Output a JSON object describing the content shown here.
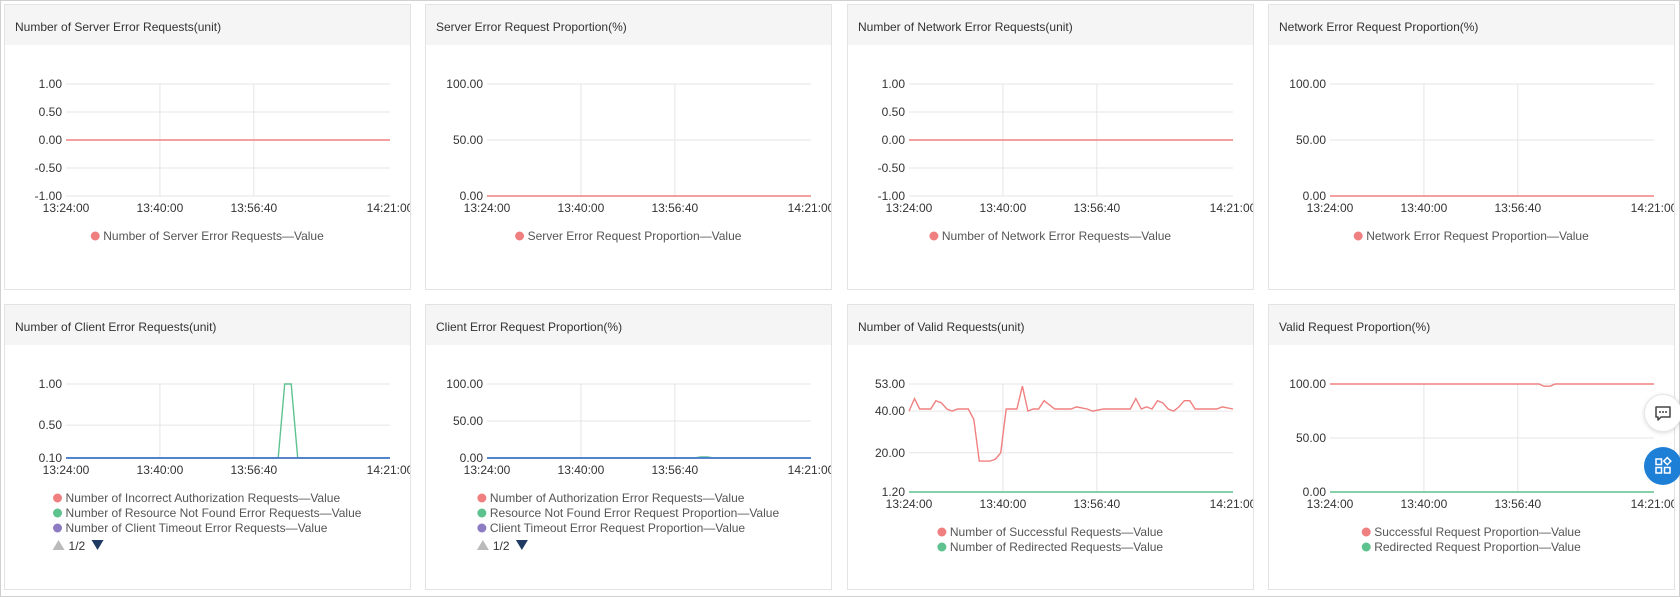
{
  "colors": {
    "red": "#f08080",
    "green": "#5ec28e",
    "purple": "#8e7cc3",
    "blue": "#3a7bd5",
    "grid": "#e6e6e6"
  },
  "x_ticks": [
    "13:24:00",
    "13:40:00",
    "13:56:40",
    "14:21:00"
  ],
  "pager": {
    "text": "1/2"
  },
  "floating": {
    "chat_icon": "chat-icon",
    "apps_icon": "apps-icon"
  },
  "chart_data": [
    {
      "id": "server-error-count",
      "type": "line",
      "title": "Number of Server Error Requests(unit)",
      "yticks": [
        "1.00",
        "0.50",
        "0.00",
        "-0.50",
        "-1.00"
      ],
      "ylim": [
        -1,
        1
      ],
      "x_range": [
        "13:24:00",
        "14:21:00"
      ],
      "series": [
        {
          "name": "Number of Server Error Requests—Value",
          "color": "#f08080",
          "points": [
            [
              0,
              0
            ],
            [
              1,
              0
            ]
          ]
        }
      ]
    },
    {
      "id": "server-error-proportion",
      "type": "line",
      "title": "Server Error Request Proportion(%)",
      "yticks": [
        "100.00",
        "50.00",
        "0.00"
      ],
      "ylim": [
        0,
        100
      ],
      "x_range": [
        "13:24:00",
        "14:21:00"
      ],
      "series": [
        {
          "name": "Server Error Request Proportion—Value",
          "color": "#f08080",
          "points": [
            [
              0,
              0
            ],
            [
              1,
              0
            ]
          ]
        }
      ]
    },
    {
      "id": "network-error-count",
      "type": "line",
      "title": "Number of Network Error Requests(unit)",
      "yticks": [
        "1.00",
        "0.50",
        "0.00",
        "-0.50",
        "-1.00"
      ],
      "ylim": [
        -1,
        1
      ],
      "x_range": [
        "13:24:00",
        "14:21:00"
      ],
      "series": [
        {
          "name": "Number of Network Error Requests—Value",
          "color": "#f08080",
          "points": [
            [
              0,
              0
            ],
            [
              1,
              0
            ]
          ]
        }
      ]
    },
    {
      "id": "network-error-proportion",
      "type": "line",
      "title": "Network Error Request Proportion(%)",
      "yticks": [
        "100.00",
        "50.00",
        "0.00"
      ],
      "ylim": [
        0,
        100
      ],
      "x_range": [
        "13:24:00",
        "14:21:00"
      ],
      "series": [
        {
          "name": "Network Error Request Proportion—Value",
          "color": "#f08080",
          "points": [
            [
              0,
              0
            ],
            [
              1,
              0
            ]
          ]
        }
      ]
    },
    {
      "id": "client-error-count",
      "type": "line",
      "title": "Number of Client Error Requests(unit)",
      "yticks": [
        "1.00",
        "0.50",
        "0.10"
      ],
      "ylim": [
        0.1,
        1
      ],
      "x_range": [
        "13:24:00",
        "14:21:00"
      ],
      "pager": true,
      "series": [
        {
          "name": "Number of Incorrect Authorization Requests—Value",
          "color": "#f08080",
          "points": [
            [
              0,
              0.1
            ],
            [
              1,
              0.1
            ]
          ]
        },
        {
          "name": "Number of Resource Not Found Error Requests—Value",
          "color": "#5ec28e",
          "points": [
            [
              0,
              0.1
            ],
            [
              0.655,
              0.1
            ],
            [
              0.675,
              1
            ],
            [
              0.695,
              1
            ],
            [
              0.715,
              0.1
            ],
            [
              1,
              0.1
            ]
          ]
        },
        {
          "name": "Number of Client Timeout Error Requests—Value",
          "color": "#8e7cc3",
          "points": [
            [
              0,
              0.1
            ],
            [
              1,
              0.1
            ]
          ]
        },
        {
          "name": "",
          "color": "#3a7bd5",
          "points": [
            [
              0,
              0.1
            ],
            [
              1,
              0.1
            ]
          ]
        }
      ]
    },
    {
      "id": "client-error-proportion",
      "type": "line",
      "title": "Client Error Request Proportion(%)",
      "yticks": [
        "100.00",
        "50.00",
        "0.00"
      ],
      "ylim": [
        0,
        100
      ],
      "x_range": [
        "13:24:00",
        "14:21:00"
      ],
      "pager": true,
      "series": [
        {
          "name": "Number of Authorization Error Requests—Value",
          "color": "#f08080",
          "points": [
            [
              0,
              0
            ],
            [
              1,
              0
            ]
          ]
        },
        {
          "name": "Resource Not Found Error Request Proportion—Value",
          "color": "#5ec28e",
          "points": [
            [
              0,
              0
            ],
            [
              0.64,
              0
            ],
            [
              0.66,
              1.5
            ],
            [
              0.68,
              1.5
            ],
            [
              0.7,
              0
            ],
            [
              1,
              0
            ]
          ]
        },
        {
          "name": "Client Timeout Error Request Proportion—Value",
          "color": "#8e7cc3",
          "points": [
            [
              0,
              0
            ],
            [
              1,
              0
            ]
          ]
        },
        {
          "name": "",
          "color": "#3a7bd5",
          "points": [
            [
              0,
              0
            ],
            [
              1,
              0
            ]
          ]
        }
      ]
    },
    {
      "id": "valid-request-count",
      "type": "line",
      "title": "Number of Valid Requests(unit)",
      "yticks": [
        "53.00",
        "40.00",
        "20.00",
        "1.20"
      ],
      "ylim": [
        1.2,
        53
      ],
      "x_range": [
        "13:24:00",
        "14:21:00"
      ],
      "series": [
        {
          "name": "Number of Successful Requests—Value",
          "color": "#f08080",
          "points": [
            [
              0,
              40
            ],
            [
              0.017,
              46
            ],
            [
              0.033,
              41
            ],
            [
              0.067,
              41
            ],
            [
              0.083,
              45
            ],
            [
              0.1,
              44
            ],
            [
              0.117,
              41
            ],
            [
              0.133,
              40
            ],
            [
              0.15,
              41
            ],
            [
              0.183,
              41
            ],
            [
              0.2,
              36
            ],
            [
              0.217,
              16
            ],
            [
              0.25,
              16
            ],
            [
              0.267,
              17
            ],
            [
              0.283,
              20
            ],
            [
              0.3,
              41
            ],
            [
              0.333,
              41
            ],
            [
              0.35,
              52
            ],
            [
              0.367,
              40
            ],
            [
              0.383,
              41
            ],
            [
              0.4,
              41
            ],
            [
              0.417,
              45
            ],
            [
              0.433,
              43
            ],
            [
              0.45,
              41
            ],
            [
              0.5,
              41
            ],
            [
              0.517,
              42
            ],
            [
              0.55,
              41
            ],
            [
              0.567,
              40
            ],
            [
              0.6,
              41
            ],
            [
              0.617,
              41
            ],
            [
              0.65,
              41
            ],
            [
              0.683,
              41
            ],
            [
              0.7,
              46
            ],
            [
              0.717,
              41
            ],
            [
              0.733,
              42
            ],
            [
              0.75,
              41
            ],
            [
              0.767,
              45
            ],
            [
              0.783,
              44
            ],
            [
              0.8,
              41
            ],
            [
              0.817,
              40
            ],
            [
              0.833,
              42
            ],
            [
              0.85,
              45
            ],
            [
              0.867,
              45
            ],
            [
              0.883,
              41
            ],
            [
              0.917,
              41
            ],
            [
              0.95,
              41
            ],
            [
              0.967,
              42
            ],
            [
              1,
              41
            ]
          ]
        },
        {
          "name": "Number of Redirected Requests—Value",
          "color": "#5ec28e",
          "points": [
            [
              0,
              1.2
            ],
            [
              1,
              1.2
            ]
          ]
        }
      ]
    },
    {
      "id": "valid-request-proportion",
      "type": "line",
      "title": "Valid Request Proportion(%)",
      "yticks": [
        "100.00",
        "50.00",
        "0.00"
      ],
      "ylim": [
        0,
        100
      ],
      "x_range": [
        "13:24:00",
        "14:21:00"
      ],
      "series": [
        {
          "name": "Successful Request Proportion—Value",
          "color": "#f08080",
          "points": [
            [
              0,
              100
            ],
            [
              0.645,
              100
            ],
            [
              0.66,
              98
            ],
            [
              0.68,
              98
            ],
            [
              0.695,
              100
            ],
            [
              1,
              100
            ]
          ]
        },
        {
          "name": "Redirected Request Proportion—Value",
          "color": "#5ec28e",
          "points": [
            [
              0,
              0
            ],
            [
              1,
              0
            ]
          ]
        }
      ]
    }
  ]
}
